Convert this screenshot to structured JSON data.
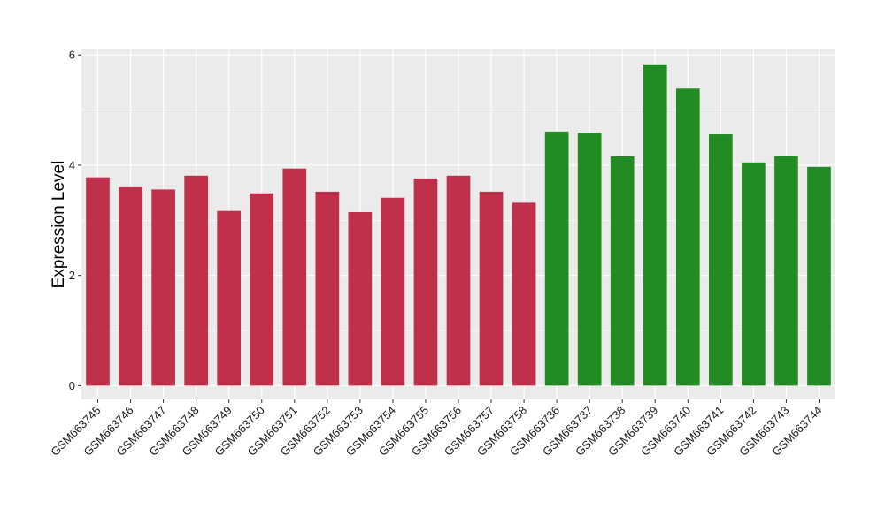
{
  "chart_data": {
    "type": "bar",
    "title": "",
    "xlabel": "",
    "ylabel": "Expression Level",
    "ylim": [
      -0.25,
      6.1
    ],
    "yticks": [
      0,
      2,
      4,
      6
    ],
    "yticks_labels": [
      "0",
      "2",
      "4",
      "6"
    ],
    "grid": true,
    "legend": "none",
    "panel_background": "#ebebeb",
    "grid_color": "#ffffff",
    "categories": [
      "GSM663745",
      "GSM663746",
      "GSM663747",
      "GSM663748",
      "GSM663749",
      "GSM663750",
      "GSM663751",
      "GSM663752",
      "GSM663753",
      "GSM663754",
      "GSM663755",
      "GSM663756",
      "GSM663757",
      "GSM663758",
      "GSM663736",
      "GSM663737",
      "GSM663738",
      "GSM663739",
      "GSM663740",
      "GSM663741",
      "GSM663742",
      "GSM663743",
      "GSM663744"
    ],
    "values": [
      3.78,
      3.6,
      3.56,
      3.81,
      3.17,
      3.49,
      3.94,
      3.52,
      3.15,
      3.41,
      3.76,
      3.81,
      3.52,
      3.32,
      4.61,
      4.59,
      4.16,
      5.83,
      5.39,
      4.56,
      4.05,
      4.17,
      3.97
    ],
    "bar_colors": [
      "#c0304a",
      "#c0304a",
      "#c0304a",
      "#c0304a",
      "#c0304a",
      "#c0304a",
      "#c0304a",
      "#c0304a",
      "#c0304a",
      "#c0304a",
      "#c0304a",
      "#c0304a",
      "#c0304a",
      "#c0304a",
      "#238b23",
      "#238b23",
      "#238b23",
      "#238b23",
      "#238b23",
      "#238b23",
      "#238b23",
      "#238b23",
      "#238b23"
    ]
  }
}
